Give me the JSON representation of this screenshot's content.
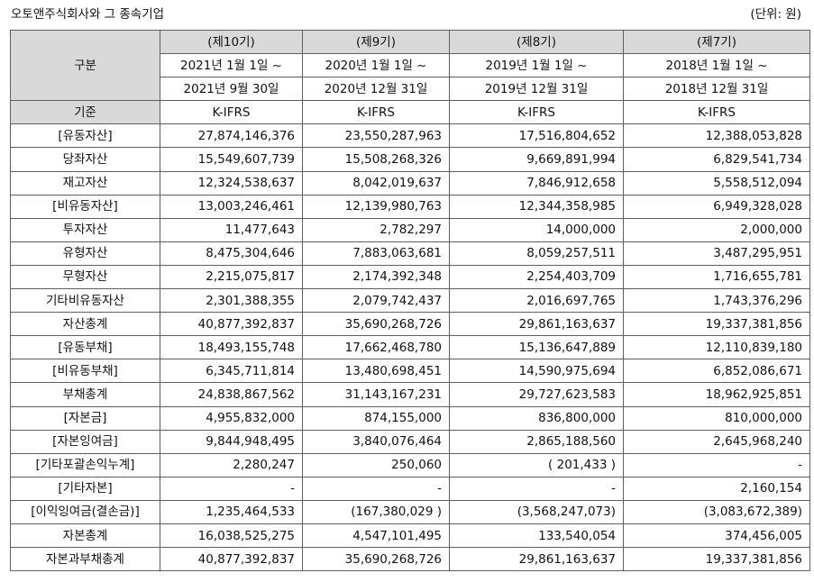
{
  "title": "오토앤주식회사와 그 종속기업",
  "unit": "(단위: 원)",
  "header": {
    "label": "구분",
    "periods": [
      {
        "name": "(제10기)",
        "from": "2021년 1월 1일 ~",
        "to": "2021년 9월 30일"
      },
      {
        "name": "(제9기)",
        "from": "2020년 1월 1일 ~",
        "to": "2020년 12월 31일"
      },
      {
        "name": "(제8기)",
        "from": "2019년 1월 1일 ~",
        "to": "2019년 12월 31일"
      },
      {
        "name": "(제7기)",
        "from": "2018년 1월 1일 ~",
        "to": "2018년 12월 31일"
      }
    ],
    "basis_label": "기준",
    "basis": [
      "K-IFRS",
      "K-IFRS",
      "K-IFRS",
      "K-IFRS"
    ]
  },
  "rows": [
    {
      "label": "[유동자산]",
      "values": [
        "27,874,146,376",
        "23,550,287,963",
        "17,516,804,652",
        "12,388,053,828"
      ]
    },
    {
      "label": "당좌자산",
      "values": [
        "15,549,607,739",
        "15,508,268,326",
        "9,669,891,994",
        "6,829,541,734"
      ]
    },
    {
      "label": "재고자산",
      "values": [
        "12,324,538,637",
        "8,042,019,637",
        "7,846,912,658",
        "5,558,512,094"
      ]
    },
    {
      "label": "[비유동자산]",
      "values": [
        "13,003,246,461",
        "12,139,980,763",
        "12,344,358,985",
        "6,949,328,028"
      ]
    },
    {
      "label": "투자자산",
      "values": [
        "11,477,643",
        "2,782,297",
        "14,000,000",
        "2,000,000"
      ]
    },
    {
      "label": "유형자산",
      "values": [
        "8,475,304,646",
        "7,883,063,681",
        "8,059,257,511",
        "3,487,295,951"
      ]
    },
    {
      "label": "무형자산",
      "values": [
        "2,215,075,817",
        "2,174,392,348",
        "2,254,403,709",
        "1,716,655,781"
      ]
    },
    {
      "label": "기타비유동자산",
      "values": [
        "2,301,388,355",
        "2,079,742,437",
        "2,016,697,765",
        "1,743,376,296"
      ]
    },
    {
      "label": "자산총계",
      "values": [
        "40,877,392,837",
        "35,690,268,726",
        "29,861,163,637",
        "19,337,381,856"
      ]
    },
    {
      "label": "[유동부채]",
      "values": [
        "18,493,155,748",
        "17,662,468,780",
        "15,136,647,889",
        "12,110,839,180"
      ]
    },
    {
      "label": "[비유동부채]",
      "values": [
        "6,345,711,814",
        "13,480,698,451",
        "14,590,975,694",
        "6,852,086,671"
      ]
    },
    {
      "label": "부채총계",
      "values": [
        "24,838,867,562",
        "31,143,167,231",
        "29,727,623,583",
        "18,962,925,851"
      ]
    },
    {
      "label": "[자본금]",
      "values": [
        "4,955,832,000",
        "874,155,000",
        "836,800,000",
        "810,000,000"
      ]
    },
    {
      "label": "[자본잉여금]",
      "values": [
        "9,844,948,495",
        "3,840,076,464",
        "2,865,188,560",
        "2,645,968,240"
      ]
    },
    {
      "label": "[기타포괄손익누계]",
      "values": [
        "2,280,247",
        "250,060",
        "( 201,433 )",
        "-"
      ]
    },
    {
      "label": "[기타자본]",
      "values": [
        "-",
        "-",
        "-",
        "2,160,154"
      ]
    },
    {
      "label": "[이익잉여금(결손금)]",
      "values": [
        "1,235,464,533",
        "(167,380,029 )",
        "(3,568,247,073)",
        "(3,083,672,389)"
      ]
    },
    {
      "label": "자본총계",
      "values": [
        "16,038,525,275",
        "4,547,101,495",
        "133,540,054",
        "374,456,005"
      ]
    },
    {
      "label": "자본과부채총계",
      "values": [
        "40,877,392,837",
        "35,690,268,726",
        "29,861,163,637",
        "19,337,381,856"
      ]
    }
  ]
}
